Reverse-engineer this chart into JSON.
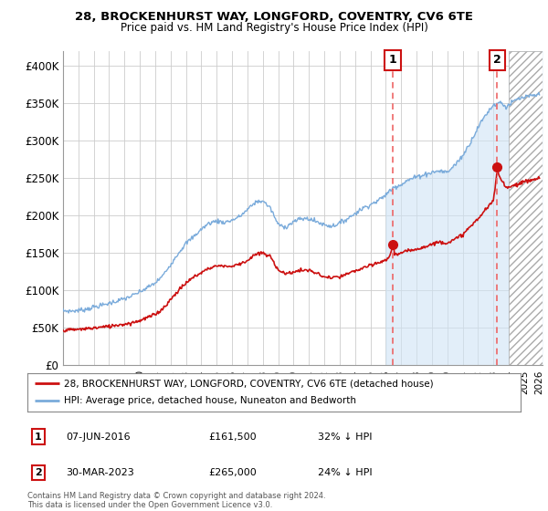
{
  "title1": "28, BROCKENHURST WAY, LONGFORD, COVENTRY, CV6 6TE",
  "title2": "Price paid vs. HM Land Registry's House Price Index (HPI)",
  "xlim_start": 1995.0,
  "xlim_end": 2026.2,
  "ylim": [
    0,
    420000
  ],
  "yticks": [
    0,
    50000,
    100000,
    150000,
    200000,
    250000,
    300000,
    350000,
    400000
  ],
  "ytick_labels": [
    "£0",
    "£50K",
    "£100K",
    "£150K",
    "£200K",
    "£250K",
    "£300K",
    "£350K",
    "£400K"
  ],
  "sale1_x": 2016.44,
  "sale1_y": 161500,
  "sale1_label": "1",
  "sale2_x": 2023.25,
  "sale2_y": 265000,
  "sale2_label": "2",
  "hpi_color": "#7aabdb",
  "hpi_fill_color": "#d0e4f5",
  "price_color": "#cc1111",
  "annotation_box_color": "#cc1111",
  "dashed_line_color": "#ee6666",
  "grid_color": "#cccccc",
  "background_color": "#ffffff",
  "hatch_start": 2024.0,
  "legend_label_price": "28, BROCKENHURST WAY, LONGFORD, COVENTRY, CV6 6TE (detached house)",
  "legend_label_hpi": "HPI: Average price, detached house, Nuneaton and Bedworth",
  "footnote1": "Contains HM Land Registry data © Crown copyright and database right 2024.",
  "footnote2": "This data is licensed under the Open Government Licence v3.0.",
  "annot1_date": "07-JUN-2016",
  "annot1_price": "£161,500",
  "annot1_hpi": "32% ↓ HPI",
  "annot2_date": "30-MAR-2023",
  "annot2_price": "£265,000",
  "annot2_hpi": "24% ↓ HPI",
  "hpi_anchors": [
    [
      1995.0,
      73000
    ],
    [
      1995.5,
      72500
    ],
    [
      1996.0,
      73500
    ],
    [
      1996.5,
      75000
    ],
    [
      1997.0,
      78000
    ],
    [
      1997.5,
      80000
    ],
    [
      1998.0,
      83000
    ],
    [
      1998.5,
      86000
    ],
    [
      1999.0,
      89000
    ],
    [
      1999.5,
      93000
    ],
    [
      2000.0,
      98000
    ],
    [
      2000.5,
      104000
    ],
    [
      2001.0,
      110000
    ],
    [
      2001.5,
      120000
    ],
    [
      2002.0,
      135000
    ],
    [
      2002.5,
      150000
    ],
    [
      2003.0,
      163000
    ],
    [
      2003.5,
      172000
    ],
    [
      2004.0,
      182000
    ],
    [
      2004.5,
      190000
    ],
    [
      2005.0,
      193000
    ],
    [
      2005.5,
      191000
    ],
    [
      2006.0,
      194000
    ],
    [
      2006.5,
      199000
    ],
    [
      2007.0,
      208000
    ],
    [
      2007.5,
      218000
    ],
    [
      2008.0,
      220000
    ],
    [
      2008.5,
      210000
    ],
    [
      2009.0,
      188000
    ],
    [
      2009.5,
      185000
    ],
    [
      2010.0,
      192000
    ],
    [
      2010.5,
      196000
    ],
    [
      2011.0,
      196000
    ],
    [
      2011.5,
      192000
    ],
    [
      2012.0,
      188000
    ],
    [
      2012.5,
      186000
    ],
    [
      2013.0,
      190000
    ],
    [
      2013.5,
      196000
    ],
    [
      2014.0,
      203000
    ],
    [
      2014.5,
      210000
    ],
    [
      2015.0,
      215000
    ],
    [
      2015.5,
      220000
    ],
    [
      2016.0,
      228000
    ],
    [
      2016.5,
      238000
    ],
    [
      2017.0,
      242000
    ],
    [
      2017.5,
      248000
    ],
    [
      2018.0,
      252000
    ],
    [
      2018.5,
      255000
    ],
    [
      2019.0,
      258000
    ],
    [
      2019.5,
      260000
    ],
    [
      2020.0,
      258000
    ],
    [
      2020.5,
      268000
    ],
    [
      2021.0,
      280000
    ],
    [
      2021.5,
      298000
    ],
    [
      2022.0,
      318000
    ],
    [
      2022.5,
      335000
    ],
    [
      2023.0,
      348000
    ],
    [
      2023.5,
      352000
    ],
    [
      2023.8,
      345000
    ],
    [
      2024.0,
      348000
    ],
    [
      2024.5,
      355000
    ],
    [
      2025.0,
      358000
    ],
    [
      2025.5,
      360000
    ],
    [
      2026.0,
      362000
    ]
  ],
  "price_anchors": [
    [
      1995.0,
      47000
    ],
    [
      1995.5,
      47500
    ],
    [
      1996.0,
      48000
    ],
    [
      1996.5,
      49000
    ],
    [
      1997.0,
      50000
    ],
    [
      1997.5,
      51000
    ],
    [
      1998.0,
      52000
    ],
    [
      1998.5,
      54000
    ],
    [
      1999.0,
      55000
    ],
    [
      1999.5,
      57000
    ],
    [
      2000.0,
      60000
    ],
    [
      2000.5,
      64000
    ],
    [
      2001.0,
      68000
    ],
    [
      2001.5,
      76000
    ],
    [
      2002.0,
      88000
    ],
    [
      2002.5,
      100000
    ],
    [
      2003.0,
      110000
    ],
    [
      2003.5,
      118000
    ],
    [
      2004.0,
      124000
    ],
    [
      2004.5,
      130000
    ],
    [
      2005.0,
      133000
    ],
    [
      2005.5,
      133000
    ],
    [
      2006.0,
      132000
    ],
    [
      2006.5,
      136000
    ],
    [
      2007.0,
      140000
    ],
    [
      2007.5,
      148000
    ],
    [
      2008.0,
      150000
    ],
    [
      2008.5,
      145000
    ],
    [
      2009.0,
      128000
    ],
    [
      2009.5,
      122000
    ],
    [
      2010.0,
      125000
    ],
    [
      2010.5,
      127000
    ],
    [
      2011.0,
      127000
    ],
    [
      2011.5,
      123000
    ],
    [
      2012.0,
      118000
    ],
    [
      2012.5,
      117000
    ],
    [
      2013.0,
      118000
    ],
    [
      2013.5,
      122000
    ],
    [
      2014.0,
      126000
    ],
    [
      2014.5,
      130000
    ],
    [
      2015.0,
      133000
    ],
    [
      2015.5,
      137000
    ],
    [
      2016.0,
      140000
    ],
    [
      2016.3,
      148000
    ],
    [
      2016.44,
      161500
    ],
    [
      2016.6,
      148000
    ],
    [
      2017.0,
      150000
    ],
    [
      2017.5,
      153000
    ],
    [
      2018.0,
      156000
    ],
    [
      2018.5,
      158000
    ],
    [
      2019.0,
      162000
    ],
    [
      2019.5,
      165000
    ],
    [
      2020.0,
      164000
    ],
    [
      2020.5,
      168000
    ],
    [
      2021.0,
      175000
    ],
    [
      2021.5,
      185000
    ],
    [
      2022.0,
      196000
    ],
    [
      2022.5,
      208000
    ],
    [
      2023.0,
      220000
    ],
    [
      2023.2,
      250000
    ],
    [
      2023.25,
      265000
    ],
    [
      2023.35,
      255000
    ],
    [
      2023.5,
      248000
    ],
    [
      2023.8,
      240000
    ],
    [
      2024.0,
      238000
    ],
    [
      2024.5,
      242000
    ],
    [
      2025.0,
      245000
    ],
    [
      2025.5,
      248000
    ],
    [
      2026.0,
      250000
    ]
  ]
}
